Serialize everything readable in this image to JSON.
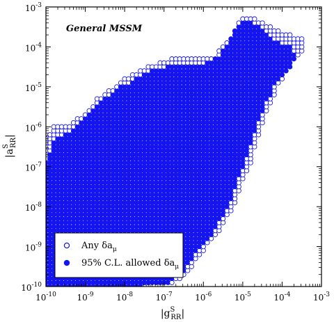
{
  "chart_data": {
    "type": "scatter",
    "title": "General MSSM",
    "xlabel": {
      "pre": "|g",
      "sup": "S",
      "sub": "RR",
      "post": "|"
    },
    "ylabel": {
      "pre": "|a",
      "sup": "S",
      "sub": "RR",
      "post": "|"
    },
    "x_scale": "log",
    "y_scale": "log",
    "xlim": [
      1e-10,
      0.001
    ],
    "ylim": [
      1e-10,
      0.001
    ],
    "x_ticks": [
      {
        "base": "10",
        "exp": "-10"
      },
      {
        "base": "10",
        "exp": "-9"
      },
      {
        "base": "10",
        "exp": "-8"
      },
      {
        "base": "10",
        "exp": "-7"
      },
      {
        "base": "10",
        "exp": "-6"
      },
      {
        "base": "10",
        "exp": "-5"
      },
      {
        "base": "10",
        "exp": "-4"
      },
      {
        "base": "10",
        "exp": "-3"
      }
    ],
    "y_ticks": [
      {
        "base": "10",
        "exp": "-10"
      },
      {
        "base": "10",
        "exp": "-9"
      },
      {
        "base": "10",
        "exp": "-8"
      },
      {
        "base": "10",
        "exp": "-7"
      },
      {
        "base": "10",
        "exp": "-6"
      },
      {
        "base": "10",
        "exp": "-5"
      },
      {
        "base": "10",
        "exp": "-4"
      },
      {
        "base": "10",
        "exp": "-3"
      }
    ],
    "grid": false,
    "legend_position": "bottom-left",
    "series": [
      {
        "name": "Any δa_μ",
        "label_main": "Any δa",
        "label_sub": "μ",
        "marker": "open-circle",
        "color": "#1515f0",
        "region_log10": {
          "lower": [
            [
              -10.0,
              -10.0
            ],
            [
              -7.4,
              -10.0
            ],
            [
              -6.7,
              -9.9
            ],
            [
              -6.3,
              -9.5
            ],
            [
              -6.0,
              -9.1
            ],
            [
              -5.6,
              -8.6
            ],
            [
              -5.2,
              -8.0
            ],
            [
              -5.0,
              -7.3
            ],
            [
              -4.8,
              -6.9
            ],
            [
              -4.6,
              -6.2
            ],
            [
              -4.3,
              -5.4
            ],
            [
              -4.0,
              -4.8
            ],
            [
              -3.7,
              -4.3
            ],
            [
              -3.5,
              -4.1
            ]
          ],
          "upper": [
            [
              -10.0,
              -6.3
            ],
            [
              -9.8,
              -6.0
            ],
            [
              -9.6,
              -5.9
            ],
            [
              -9.4,
              -5.9
            ],
            [
              -9.0,
              -5.7
            ],
            [
              -8.7,
              -5.3
            ],
            [
              -8.4,
              -5.1
            ],
            [
              -8.0,
              -4.8
            ],
            [
              -7.6,
              -4.6
            ],
            [
              -7.2,
              -4.4
            ],
            [
              -6.8,
              -4.3
            ],
            [
              -6.2,
              -4.3
            ],
            [
              -5.8,
              -4.3
            ],
            [
              -5.5,
              -4.0
            ],
            [
              -5.2,
              -3.6
            ],
            [
              -5.0,
              -3.2
            ],
            [
              -4.8,
              -3.2
            ],
            [
              -4.4,
              -3.4
            ],
            [
              -4.0,
              -3.6
            ],
            [
              -3.5,
              -3.8
            ]
          ]
        }
      },
      {
        "name": "95% C.L. allowed δa_μ",
        "label_main": "95% C.L. allowed δa",
        "label_sub": "μ",
        "marker": "filled-circle",
        "color": "#1515f0",
        "region_log10": {
          "lower": [
            [
              -10.0,
              -10.0
            ],
            [
              -7.6,
              -10.0
            ],
            [
              -6.9,
              -9.9
            ],
            [
              -6.5,
              -9.6
            ],
            [
              -6.2,
              -9.2
            ],
            [
              -5.8,
              -8.7
            ],
            [
              -5.4,
              -8.1
            ],
            [
              -5.2,
              -7.6
            ],
            [
              -5.0,
              -7.0
            ],
            [
              -4.8,
              -6.4
            ],
            [
              -4.5,
              -5.6
            ],
            [
              -4.2,
              -5.0
            ],
            [
              -3.9,
              -4.6
            ],
            [
              -3.6,
              -4.3
            ]
          ],
          "upper": [
            [
              -10.0,
              -6.9
            ],
            [
              -9.8,
              -6.4
            ],
            [
              -9.6,
              -6.2
            ],
            [
              -9.2,
              -6.0
            ],
            [
              -8.8,
              -5.6
            ],
            [
              -8.5,
              -5.3
            ],
            [
              -8.1,
              -5.0
            ],
            [
              -7.7,
              -4.8
            ],
            [
              -7.3,
              -4.6
            ],
            [
              -6.9,
              -4.5
            ],
            [
              -6.3,
              -4.5
            ],
            [
              -5.9,
              -4.4
            ],
            [
              -5.6,
              -4.2
            ],
            [
              -5.3,
              -3.8
            ],
            [
              -5.1,
              -3.4
            ],
            [
              -4.9,
              -3.3
            ],
            [
              -4.6,
              -3.5
            ],
            [
              -4.2,
              -3.8
            ],
            [
              -3.8,
              -4.0
            ],
            [
              -3.6,
              -4.2
            ]
          ]
        }
      }
    ]
  }
}
